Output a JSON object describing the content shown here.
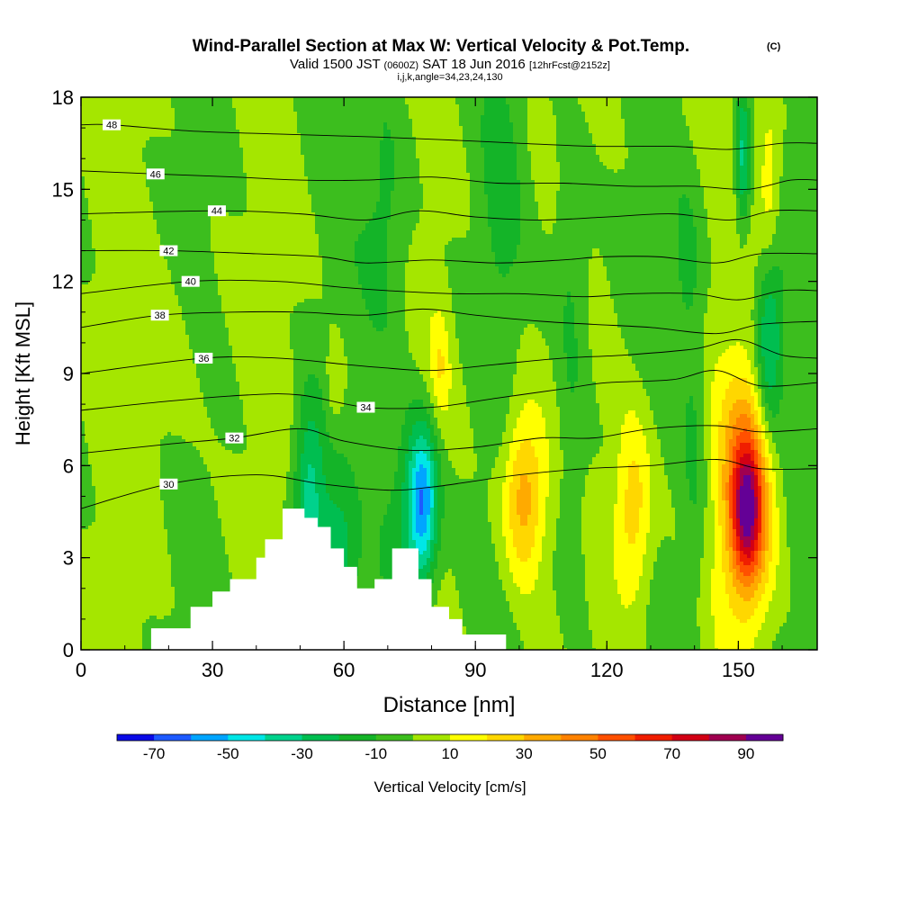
{
  "header": {
    "title": "Wind-Parallel Section at Max W: Vertical Velocity & Pot.Temp.",
    "copyright": "(C)",
    "valid_prefix": "Valid 1500 JST",
    "valid_utc": "(0600Z)",
    "valid_date": "SAT 18 Jun 2016",
    "forecast": "[12hrFcst@2152z]",
    "grid_info": "i,j,k,angle=34,23,24,130"
  },
  "colorbar": {
    "label": "Vertical Velocity [cm/s]",
    "ticks": [
      "-70",
      "-50",
      "-30",
      "-10",
      "10",
      "30",
      "50",
      "70",
      "90"
    ],
    "bounds": [
      -80,
      -70,
      -60,
      -50,
      -40,
      -30,
      -20,
      -10,
      0,
      10,
      20,
      30,
      40,
      50,
      60,
      70,
      80,
      90,
      100
    ],
    "colors": [
      "#0a0ae6",
      "#1e5aff",
      "#00a5ff",
      "#00e6e6",
      "#00d28c",
      "#00be50",
      "#14b428",
      "#3cbe1e",
      "#a5e600",
      "#ffff00",
      "#ffd700",
      "#ffaa00",
      "#ff8200",
      "#ff5000",
      "#f01e00",
      "#d20014",
      "#a00050",
      "#640096"
    ]
  },
  "chart_data": {
    "type": "heatmap",
    "title": "Wind-Parallel Section at Max W: Vertical Velocity & Pot.Temp.",
    "xlabel": "Distance [nm]",
    "ylabel": "Height [Kft MSL]",
    "xlim": [
      0,
      168
    ],
    "ylim": [
      0,
      18
    ],
    "x_ticks": [
      0,
      30,
      60,
      90,
      120,
      150
    ],
    "y_ticks": [
      0,
      3,
      6,
      9,
      12,
      15,
      18
    ],
    "background_value_cm_s": 0,
    "velocity_features": [
      {
        "x": 52,
        "y": 5.0,
        "sx": 2.5,
        "sy": 2.2,
        "w": -35
      },
      {
        "x": 58,
        "y": 3.0,
        "sx": 3.0,
        "sy": 1.6,
        "w": -25
      },
      {
        "x": 78,
        "y": 4.8,
        "sx": 2.4,
        "sy": 1.8,
        "w": -55
      },
      {
        "x": 74,
        "y": 4.0,
        "sx": 4.0,
        "sy": 2.4,
        "w": -20
      },
      {
        "x": 101,
        "y": 5.0,
        "sx": 3.3,
        "sy": 1.9,
        "w": 38
      },
      {
        "x": 126,
        "y": 4.5,
        "sx": 3.2,
        "sy": 2.3,
        "w": 30
      },
      {
        "x": 152,
        "y": 5.0,
        "sx": 4.2,
        "sy": 2.7,
        "w": 55
      },
      {
        "x": 152,
        "y": 4.5,
        "sx": 2.2,
        "sy": 1.4,
        "w": 45
      },
      {
        "x": 157,
        "y": 10.0,
        "sx": 2.2,
        "sy": 2.2,
        "w": -35
      },
      {
        "x": 151,
        "y": 16.0,
        "sx": 1.2,
        "sy": 1.6,
        "w": -35
      },
      {
        "x": 157,
        "y": 15.0,
        "sx": 1.8,
        "sy": 2.0,
        "w": 20
      },
      {
        "x": 82,
        "y": 9.2,
        "sx": 1.6,
        "sy": 1.3,
        "w": 16
      },
      {
        "x": 58,
        "y": 8.6,
        "sx": 1.5,
        "sy": 1.0,
        "w": 13
      },
      {
        "x": 60,
        "y": 3.0,
        "sx": 3.0,
        "sy": 1.0,
        "w": 0
      },
      {
        "x": 20,
        "y": 9.5,
        "sx": 8.0,
        "sy": 3.0,
        "w": 6
      },
      {
        "x": 112,
        "y": 13.0,
        "sx": 3.0,
        "sy": 3.0,
        "w": -14
      },
      {
        "x": 70,
        "y": 14.0,
        "sx": 4.0,
        "sy": 3.0,
        "w": -14
      },
      {
        "x": 96,
        "y": 15.0,
        "sx": 3.0,
        "sy": 3.0,
        "w": -12
      },
      {
        "x": 138,
        "y": 12.5,
        "sx": 2.5,
        "sy": 2.0,
        "w": -12
      },
      {
        "x": 140,
        "y": 6.0,
        "sx": 2.0,
        "sy": 4.0,
        "w": -12
      },
      {
        "x": 112,
        "y": 5.0,
        "sx": 2.5,
        "sy": 4.0,
        "w": -12
      }
    ],
    "terrain_kft": [
      [
        0,
        0.0
      ],
      [
        16,
        0.0
      ],
      [
        16,
        0.7
      ],
      [
        25,
        0.7
      ],
      [
        25,
        1.4
      ],
      [
        30,
        1.4
      ],
      [
        30,
        1.9
      ],
      [
        34,
        1.9
      ],
      [
        34,
        2.3
      ],
      [
        40,
        2.3
      ],
      [
        40,
        3.0
      ],
      [
        42,
        3.0
      ],
      [
        42,
        3.6
      ],
      [
        46,
        3.6
      ],
      [
        46,
        4.6
      ],
      [
        51,
        4.6
      ],
      [
        51,
        4.3
      ],
      [
        54,
        4.3
      ],
      [
        54,
        4.0
      ],
      [
        57,
        4.0
      ],
      [
        57,
        3.3
      ],
      [
        60,
        3.3
      ],
      [
        60,
        2.7
      ],
      [
        63,
        2.7
      ],
      [
        63,
        2.0
      ],
      [
        67,
        2.0
      ],
      [
        67,
        2.3
      ],
      [
        71,
        2.3
      ],
      [
        71,
        3.3
      ],
      [
        77,
        3.3
      ],
      [
        77,
        2.3
      ],
      [
        80,
        2.3
      ],
      [
        80,
        1.4
      ],
      [
        84,
        1.4
      ],
      [
        84,
        1.0
      ],
      [
        87,
        1.0
      ],
      [
        87,
        0.5
      ],
      [
        97,
        0.5
      ],
      [
        97,
        0.0
      ],
      [
        168,
        0.0
      ]
    ],
    "series": [
      {
        "theta_K": 30,
        "label_at_nm": 20,
        "x": [
          0,
          20,
          40,
          55,
          70,
          80,
          90,
          100,
          115,
          130,
          145,
          155,
          168
        ],
        "y": [
          4.6,
          5.4,
          5.7,
          5.4,
          5.2,
          5.3,
          5.5,
          5.7,
          5.9,
          6.0,
          6.2,
          5.9,
          5.9
        ]
      },
      {
        "theta_K": 32,
        "label_at_nm": 35,
        "x": [
          0,
          20,
          35,
          50,
          60,
          75,
          90,
          105,
          117,
          130,
          145,
          155,
          168
        ],
        "y": [
          6.4,
          6.7,
          6.9,
          7.2,
          6.8,
          6.5,
          6.6,
          6.9,
          6.9,
          7.2,
          7.3,
          7.1,
          7.2
        ]
      },
      {
        "theta_K": 34,
        "label_at_nm": 65,
        "x": [
          0,
          20,
          38,
          50,
          65,
          80,
          95,
          110,
          120,
          135,
          145,
          155,
          168
        ],
        "y": [
          7.8,
          8.1,
          8.3,
          8.3,
          7.9,
          7.9,
          8.2,
          8.5,
          8.7,
          8.8,
          9.1,
          8.6,
          8.7
        ]
      },
      {
        "theta_K": 36,
        "label_at_nm": 28,
        "x": [
          0,
          28,
          45,
          60,
          68,
          80,
          95,
          110,
          124,
          140,
          150,
          160,
          168
        ],
        "y": [
          9.0,
          9.5,
          9.5,
          9.3,
          9.2,
          9.1,
          9.3,
          9.5,
          9.6,
          9.8,
          10.1,
          9.6,
          9.5
        ]
      },
      {
        "theta_K": 38,
        "label_at_nm": 18,
        "x": [
          0,
          18,
          35,
          50,
          65,
          78,
          90,
          105,
          117,
          130,
          145,
          155,
          168
        ],
        "y": [
          10.5,
          10.9,
          11.0,
          11.0,
          10.9,
          11.1,
          10.9,
          10.7,
          10.6,
          10.5,
          10.3,
          10.6,
          10.7
        ]
      },
      {
        "theta_K": 40,
        "label_at_nm": 25,
        "x": [
          0,
          25,
          45,
          60,
          70,
          85,
          100,
          115,
          126,
          140,
          150,
          160,
          168
        ],
        "y": [
          11.6,
          12.0,
          12.0,
          11.8,
          11.7,
          11.6,
          11.6,
          11.5,
          11.6,
          11.6,
          11.4,
          11.7,
          11.7
        ]
      },
      {
        "theta_K": 42,
        "label_at_nm": 20,
        "x": [
          0,
          20,
          40,
          55,
          65,
          80,
          95,
          110,
          119,
          132,
          145,
          155,
          168
        ],
        "y": [
          13.0,
          13.0,
          12.9,
          12.8,
          12.6,
          12.7,
          12.6,
          12.7,
          12.8,
          12.8,
          12.6,
          12.9,
          12.9
        ]
      },
      {
        "theta_K": 44,
        "label_at_nm": 31,
        "x": [
          0,
          31,
          50,
          65,
          77,
          90,
          105,
          120,
          135,
          148,
          158,
          168
        ],
        "y": [
          14.2,
          14.3,
          14.2,
          14.0,
          14.3,
          14.1,
          14.0,
          14.1,
          14.2,
          14.0,
          14.3,
          14.3
        ]
      },
      {
        "theta_K": 46,
        "label_at_nm": 17,
        "x": [
          0,
          17,
          35,
          50,
          65,
          80,
          95,
          110,
          125,
          140,
          152,
          162,
          168
        ],
        "y": [
          15.6,
          15.5,
          15.4,
          15.3,
          15.3,
          15.4,
          15.2,
          15.2,
          15.1,
          15.1,
          15.0,
          15.3,
          15.3
        ]
      },
      {
        "theta_K": 48,
        "label_at_nm": 7,
        "x": [
          0,
          7,
          25,
          45,
          68,
          85,
          100,
          117,
          135,
          148,
          160,
          168
        ],
        "y": [
          17.1,
          17.1,
          16.9,
          16.8,
          16.7,
          16.6,
          16.5,
          16.4,
          16.4,
          16.3,
          16.5,
          16.5
        ]
      }
    ]
  }
}
